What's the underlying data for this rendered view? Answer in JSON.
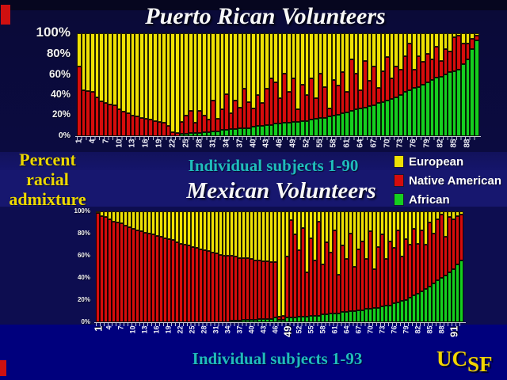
{
  "slide": {
    "title_top": "Puerto Rican Volunteers",
    "title_bottom": "Mexican Volunteers",
    "ylabel_lines": [
      "Percent",
      "racial",
      "admixture"
    ],
    "xlabel_top": "Individual subjects 1-90",
    "xlabel_bottom": "Individual subjects 1-93",
    "logo": {
      "part1": "UC",
      "part2": "SF"
    }
  },
  "legend": {
    "position": "middle-right",
    "items": [
      {
        "label": "European",
        "color": "#eee104"
      },
      {
        "label": "Native American",
        "color": "#d60c0c"
      },
      {
        "label": "African",
        "color": "#15cf1f"
      }
    ]
  },
  "colors": {
    "background_top": "#0b0b40",
    "background_bottom": "#00007d",
    "title_text": "#f7f7f7",
    "axis_caption_teal": "#1fbcbc",
    "ylabel_yellow": "#ecd800",
    "european_yellow": "#eee104",
    "native_american_red": "#d60c0c",
    "african_green": "#15cf1f",
    "logo_yellow": "#f2d400"
  },
  "chart_data": [
    {
      "type": "bar",
      "stacked": true,
      "title": "Puerto Rican Volunteers",
      "xlabel": "Individual subjects 1-90",
      "ylabel": "Percent racial admixture",
      "n_bars": 90,
      "ylim": [
        0,
        100
      ],
      "ytick_labels": [
        "100%",
        "80%",
        "60%",
        "40%",
        "20%",
        "0%"
      ],
      "ytick_values": [
        100,
        80,
        60,
        40,
        20,
        0
      ],
      "xtick_values": [
        1,
        4,
        7,
        10,
        13,
        16,
        19,
        22,
        25,
        28,
        31,
        34,
        37,
        40,
        43,
        46,
        49,
        52,
        55,
        58,
        61,
        64,
        67,
        70,
        73,
        76,
        79,
        82,
        85,
        88
      ],
      "highlighted_xticks": [],
      "legend": [
        "European",
        "Native American",
        "African"
      ],
      "series_order_bottom_to_top": [
        "African",
        "Native American",
        "European"
      ],
      "note": "per-bar [african_pct, native_american_pct]; european_pct = 100 - african - native (estimated from pixels)",
      "bars_african_native": [
        [
          0,
          68
        ],
        [
          0,
          45
        ],
        [
          0,
          44
        ],
        [
          0,
          43
        ],
        [
          0,
          38
        ],
        [
          0,
          34
        ],
        [
          0,
          32
        ],
        [
          0,
          31
        ],
        [
          0,
          30
        ],
        [
          0,
          26
        ],
        [
          0,
          24
        ],
        [
          0,
          22
        ],
        [
          0,
          20
        ],
        [
          0,
          19
        ],
        [
          0,
          18
        ],
        [
          0,
          17
        ],
        [
          0,
          16
        ],
        [
          0,
          15
        ],
        [
          0,
          14
        ],
        [
          0,
          13
        ],
        [
          0,
          10
        ],
        [
          0,
          4
        ],
        [
          0,
          3
        ],
        [
          2,
          12
        ],
        [
          2,
          18
        ],
        [
          3,
          22
        ],
        [
          3,
          10
        ],
        [
          3,
          22
        ],
        [
          4,
          16
        ],
        [
          4,
          12
        ],
        [
          5,
          30
        ],
        [
          5,
          12
        ],
        [
          6,
          20
        ],
        [
          6,
          35
        ],
        [
          7,
          15
        ],
        [
          7,
          28
        ],
        [
          8,
          20
        ],
        [
          8,
          38
        ],
        [
          8,
          25
        ],
        [
          9,
          18
        ],
        [
          10,
          30
        ],
        [
          10,
          22
        ],
        [
          11,
          35
        ],
        [
          11,
          45
        ],
        [
          12,
          40
        ],
        [
          12,
          25
        ],
        [
          13,
          48
        ],
        [
          13,
          30
        ],
        [
          14,
          42
        ],
        [
          14,
          12
        ],
        [
          15,
          35
        ],
        [
          15,
          25
        ],
        [
          16,
          40
        ],
        [
          17,
          20
        ],
        [
          18,
          43
        ],
        [
          18,
          30
        ],
        [
          19,
          8
        ],
        [
          20,
          35
        ],
        [
          21,
          28
        ],
        [
          22,
          40
        ],
        [
          23,
          20
        ],
        [
          25,
          50
        ],
        [
          26,
          35
        ],
        [
          27,
          18
        ],
        [
          28,
          45
        ],
        [
          29,
          25
        ],
        [
          30,
          38
        ],
        [
          32,
          15
        ],
        [
          33,
          30
        ],
        [
          35,
          42
        ],
        [
          36,
          20
        ],
        [
          38,
          30
        ],
        [
          40,
          25
        ],
        [
          43,
          35
        ],
        [
          45,
          45
        ],
        [
          47,
          18
        ],
        [
          48,
          30
        ],
        [
          50,
          22
        ],
        [
          52,
          28
        ],
        [
          55,
          20
        ],
        [
          57,
          30
        ],
        [
          58,
          15
        ],
        [
          60,
          25
        ],
        [
          62,
          20
        ],
        [
          63,
          33
        ],
        [
          65,
          33
        ],
        [
          70,
          20
        ],
        [
          75,
          15
        ],
        [
          85,
          10
        ],
        [
          93,
          5
        ]
      ]
    },
    {
      "type": "bar",
      "stacked": true,
      "title": "Mexican Volunteers",
      "xlabel": "Individual subjects 1-93",
      "ylabel": "Percent racial admixture",
      "n_bars": 93,
      "ylim": [
        0,
        100
      ],
      "ytick_labels": [
        "100%",
        "80%",
        "60%",
        "40%",
        "20%",
        "0%"
      ],
      "ytick_values": [
        100,
        80,
        60,
        40,
        20,
        0
      ],
      "xtick_values": [
        1,
        4,
        7,
        10,
        13,
        16,
        19,
        22,
        25,
        28,
        31,
        34,
        37,
        40,
        43,
        46,
        49,
        52,
        55,
        58,
        61,
        64,
        67,
        70,
        73,
        76,
        79,
        82,
        85,
        88,
        91
      ],
      "highlighted_xticks": [
        1,
        49,
        91
      ],
      "legend": [
        "European",
        "Native American",
        "African"
      ],
      "series_order_bottom_to_top": [
        "African",
        "Native American",
        "European"
      ],
      "note": "per-bar [african_pct, native_american_pct]; european_pct = 100 - african - native (estimated from pixels)",
      "bars_african_native": [
        [
          0,
          99
        ],
        [
          0,
          96
        ],
        [
          0,
          95
        ],
        [
          0,
          93
        ],
        [
          0,
          91
        ],
        [
          0,
          90
        ],
        [
          0,
          89
        ],
        [
          0,
          87
        ],
        [
          0,
          86
        ],
        [
          0,
          84
        ],
        [
          0,
          83
        ],
        [
          0,
          82
        ],
        [
          0,
          81
        ],
        [
          0,
          80
        ],
        [
          0,
          79
        ],
        [
          0,
          78
        ],
        [
          0,
          77
        ],
        [
          0,
          76
        ],
        [
          0,
          75
        ],
        [
          0,
          74
        ],
        [
          0,
          72
        ],
        [
          0,
          71
        ],
        [
          0,
          70
        ],
        [
          0,
          69
        ],
        [
          0,
          68
        ],
        [
          0,
          67
        ],
        [
          0,
          66
        ],
        [
          0,
          65
        ],
        [
          0,
          64
        ],
        [
          0,
          63
        ],
        [
          0,
          62
        ],
        [
          0,
          61
        ],
        [
          0,
          60
        ],
        [
          0,
          60
        ],
        [
          1,
          59
        ],
        [
          1,
          58
        ],
        [
          1,
          57
        ],
        [
          2,
          56
        ],
        [
          2,
          56
        ],
        [
          2,
          55
        ],
        [
          2,
          54
        ],
        [
          3,
          53
        ],
        [
          3,
          52
        ],
        [
          3,
          52
        ],
        [
          3,
          51
        ],
        [
          4,
          50
        ],
        [
          2,
          3
        ],
        [
          2,
          4
        ],
        [
          4,
          55
        ],
        [
          4,
          88
        ],
        [
          4,
          75
        ],
        [
          5,
          60
        ],
        [
          5,
          80
        ],
        [
          5,
          40
        ],
        [
          6,
          70
        ],
        [
          6,
          50
        ],
        [
          6,
          85
        ],
        [
          7,
          45
        ],
        [
          7,
          65
        ],
        [
          8,
          55
        ],
        [
          8,
          75
        ],
        [
          8,
          35
        ],
        [
          9,
          60
        ],
        [
          9,
          48
        ],
        [
          10,
          70
        ],
        [
          10,
          40
        ],
        [
          11,
          55
        ],
        [
          11,
          62
        ],
        [
          12,
          45
        ],
        [
          12,
          70
        ],
        [
          13,
          35
        ],
        [
          13,
          55
        ],
        [
          14,
          65
        ],
        [
          15,
          42
        ],
        [
          15,
          58
        ],
        [
          17,
          50
        ],
        [
          18,
          65
        ],
        [
          19,
          40
        ],
        [
          20,
          55
        ],
        [
          22,
          48
        ],
        [
          24,
          60
        ],
        [
          26,
          45
        ],
        [
          28,
          55
        ],
        [
          30,
          40
        ],
        [
          32,
          58
        ],
        [
          35,
          45
        ],
        [
          38,
          55
        ],
        [
          40,
          57
        ],
        [
          42,
          35
        ],
        [
          45,
          50
        ],
        [
          48,
          45
        ],
        [
          52,
          44
        ],
        [
          56,
          41
        ]
      ]
    }
  ]
}
